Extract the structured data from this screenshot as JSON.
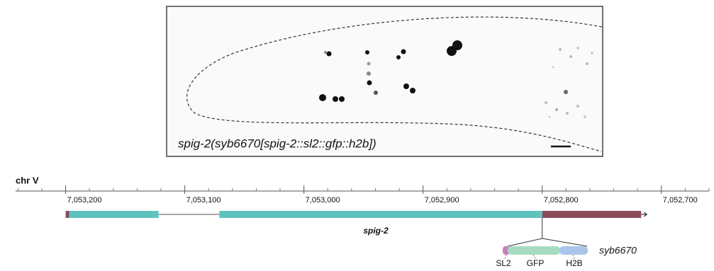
{
  "image": {
    "caption": "spig-2(syb6670[spig-2::sl2::gfp::h2b])"
  },
  "track": {
    "chromosome": "chr V",
    "xlim": [
      7053242,
      7052660
    ],
    "ticks": [
      {
        "value": 7053200,
        "label": "7,053,200"
      },
      {
        "value": 7053100,
        "label": "7,053,100"
      },
      {
        "value": 7053000,
        "label": "7,053,000"
      },
      {
        "value": 7052900,
        "label": "7,052,900"
      },
      {
        "value": 7052800,
        "label": "7,052,800"
      },
      {
        "value": 7052700,
        "label": "7,052,700"
      }
    ],
    "minor_ticks": [
      7053240,
      7053220,
      7053180,
      7053160,
      7053140,
      7053120,
      7053080,
      7053060,
      7053040,
      7053020,
      7052980,
      7052960,
      7052940,
      7052920,
      7052880,
      7052860,
      7052840,
      7052820,
      7052780,
      7052760,
      7052740,
      7052720,
      7052680,
      7052660
    ],
    "gene": {
      "name": "spig-2",
      "features": [
        {
          "kind": "utr",
          "start": 7053200,
          "end": 7053197
        },
        {
          "kind": "exon",
          "start": 7053197,
          "end": 7053122
        },
        {
          "kind": "intron",
          "start": 7053122,
          "end": 7053071
        },
        {
          "kind": "exon",
          "start": 7053071,
          "end": 7052800
        },
        {
          "kind": "utr",
          "start": 7052800,
          "end": 7052717
        }
      ]
    },
    "insert": {
      "name": "syb6670",
      "parts": [
        "SL2",
        "GFP",
        "H2B"
      ]
    }
  }
}
